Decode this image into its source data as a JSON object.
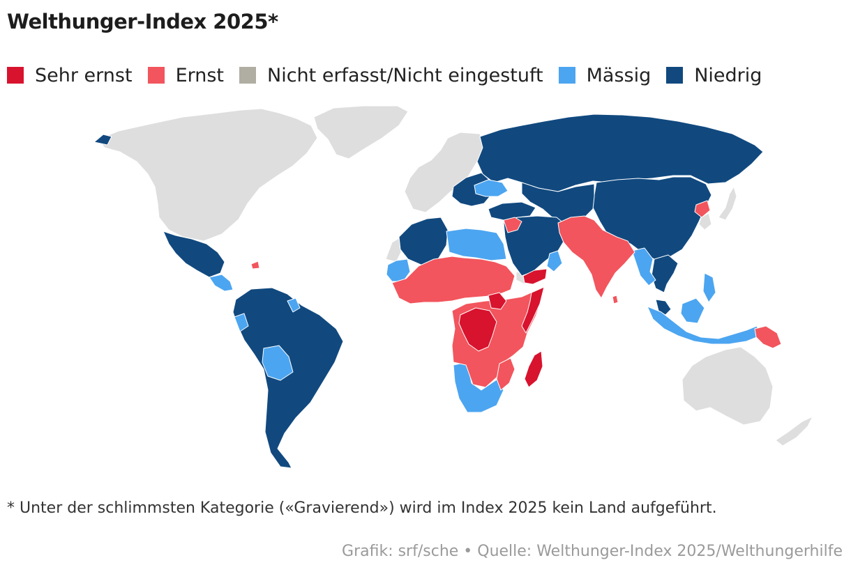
{
  "title": "Welthunger-Index 2025*",
  "legend": [
    {
      "label": "Sehr ernst",
      "color": "#d8132e"
    },
    {
      "label": "Ernst",
      "color": "#f2555d"
    },
    {
      "label": "Nicht erfasst/Nicht eingestuft",
      "color": "#b0ada2"
    },
    {
      "label": "Mässig",
      "color": "#4ca5f0"
    },
    {
      "label": "Niedrig",
      "color": "#11497f"
    }
  ],
  "colors": {
    "not_covered": "#dedede",
    "border": "#ffffff"
  },
  "footnote": "* Unter der schlimmsten Kategorie («Gravierend») wird im Index 2025 kein Land aufgeführt.",
  "source": "Grafik: srf/sche • Quelle: Welthunger-Index 2025/Welthungerhilfe"
}
